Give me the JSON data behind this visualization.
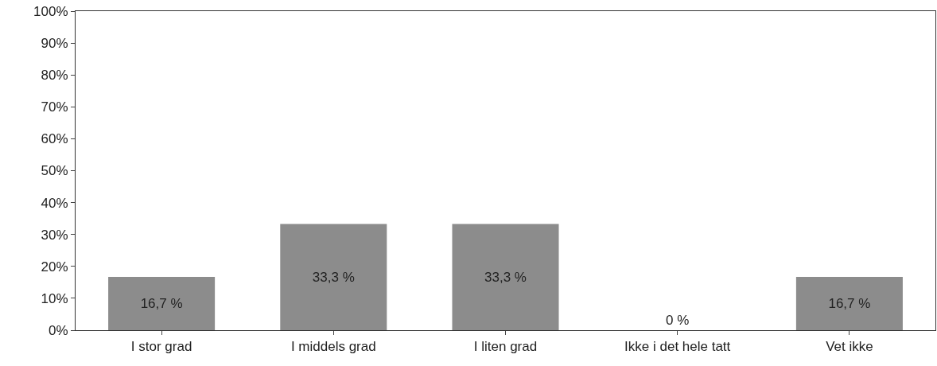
{
  "chart_data": {
    "type": "bar",
    "categories": [
      "I stor grad",
      "I middels grad",
      "I liten grad",
      "Ikke i det hele tatt",
      "Vet ikke"
    ],
    "values": [
      16.7,
      33.3,
      33.3,
      0,
      16.7
    ],
    "color": "#8c8c8c",
    "value_labels": [
      "16,7 %",
      "33,3 %",
      "33,3 %",
      "0 %",
      "16,7 %"
    ],
    "ylim": [
      0,
      100
    ],
    "yticks": [
      {
        "value": 0,
        "label": "0%"
      },
      {
        "value": 10,
        "label": "10%"
      },
      {
        "value": 20,
        "label": "20%"
      },
      {
        "value": 30,
        "label": "30%"
      },
      {
        "value": 40,
        "label": "40%"
      },
      {
        "value": 50,
        "label": "50%"
      },
      {
        "value": 60,
        "label": "60%"
      },
      {
        "value": 70,
        "label": "70%"
      },
      {
        "value": 80,
        "label": "80%"
      },
      {
        "value": 90,
        "label": "90%"
      },
      {
        "value": 100,
        "label": "100%"
      }
    ],
    "grid": false
  }
}
